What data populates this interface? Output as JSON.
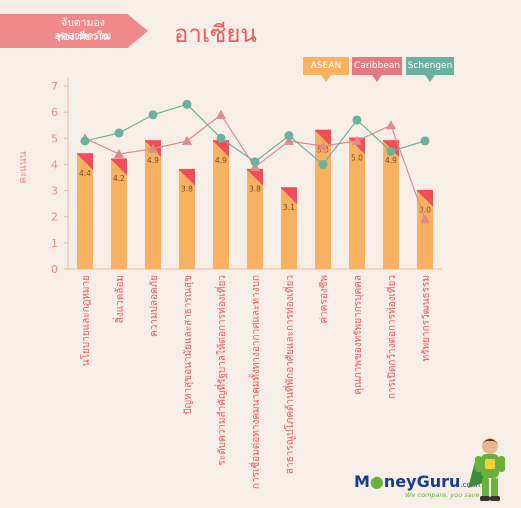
{
  "header": {
    "subtitle_line1": "จับตามองอุตสาหกรรม",
    "subtitle_line2": "ท่องเที่ยวใน",
    "title": "อาเซียน"
  },
  "legend": [
    {
      "name": "ASEAN",
      "color": "#f8b160"
    },
    {
      "name": "Caribbean",
      "color": "#e17a82"
    },
    {
      "name": "Schengen",
      "color": "#6cb0a0"
    }
  ],
  "chart_data": {
    "type": "bar",
    "ylabel": "คะแนน",
    "xlabel": "",
    "ylim": [
      0,
      7
    ],
    "yticks": [
      0,
      1,
      2,
      3,
      4,
      5,
      6,
      7
    ],
    "grid": false,
    "legend_position": "top-right",
    "categories": [
      "นโยบายและกฎหมาย",
      "สิ่งแวดล้อม",
      "ความปลอดภัย",
      "ปัญหาสุขอนามัยและสาธารณสุข",
      "ระดับความสำคัญที่รัฐบาลให้ต่อการท่องเที่ยว",
      "การเชื่อมต่อทางคมนาคมทั้งทางอากาศและทางบก",
      "สาธารณูปโภคด้านที่พักอาศัยและการท่องเที่ยว",
      "ค่าครองชีพ",
      "คุณภาพของทรัพยากรบุคคล",
      "การเปิดกว้างต่อการท่องเที่ยว",
      "ทรัพยากรวัฒนธรรม"
    ],
    "series": [
      {
        "name": "ASEAN",
        "type": "bar",
        "color": "#f8b160",
        "values": [
          4.4,
          4.2,
          4.9,
          3.8,
          4.9,
          3.8,
          3.1,
          5.3,
          5.0,
          4.9,
          3.0
        ]
      },
      {
        "name": "Caribbean",
        "type": "line",
        "marker": "triangle",
        "color": "#e08a8c",
        "values": [
          5.0,
          4.4,
          4.6,
          4.9,
          5.9,
          3.9,
          4.9,
          4.7,
          4.9,
          5.5,
          1.9
        ]
      },
      {
        "name": "Schengen",
        "type": "line",
        "marker": "circle",
        "color": "#6cb0a0",
        "values": [
          4.9,
          5.2,
          5.9,
          6.3,
          5.0,
          4.1,
          5.1,
          4.0,
          5.7,
          4.5,
          4.9
        ]
      }
    ]
  },
  "branding": {
    "logo_part1": "M",
    "logo_part2": "neyGuru",
    "logo_domain": ".co.th",
    "slogan": "We compare, you save"
  }
}
